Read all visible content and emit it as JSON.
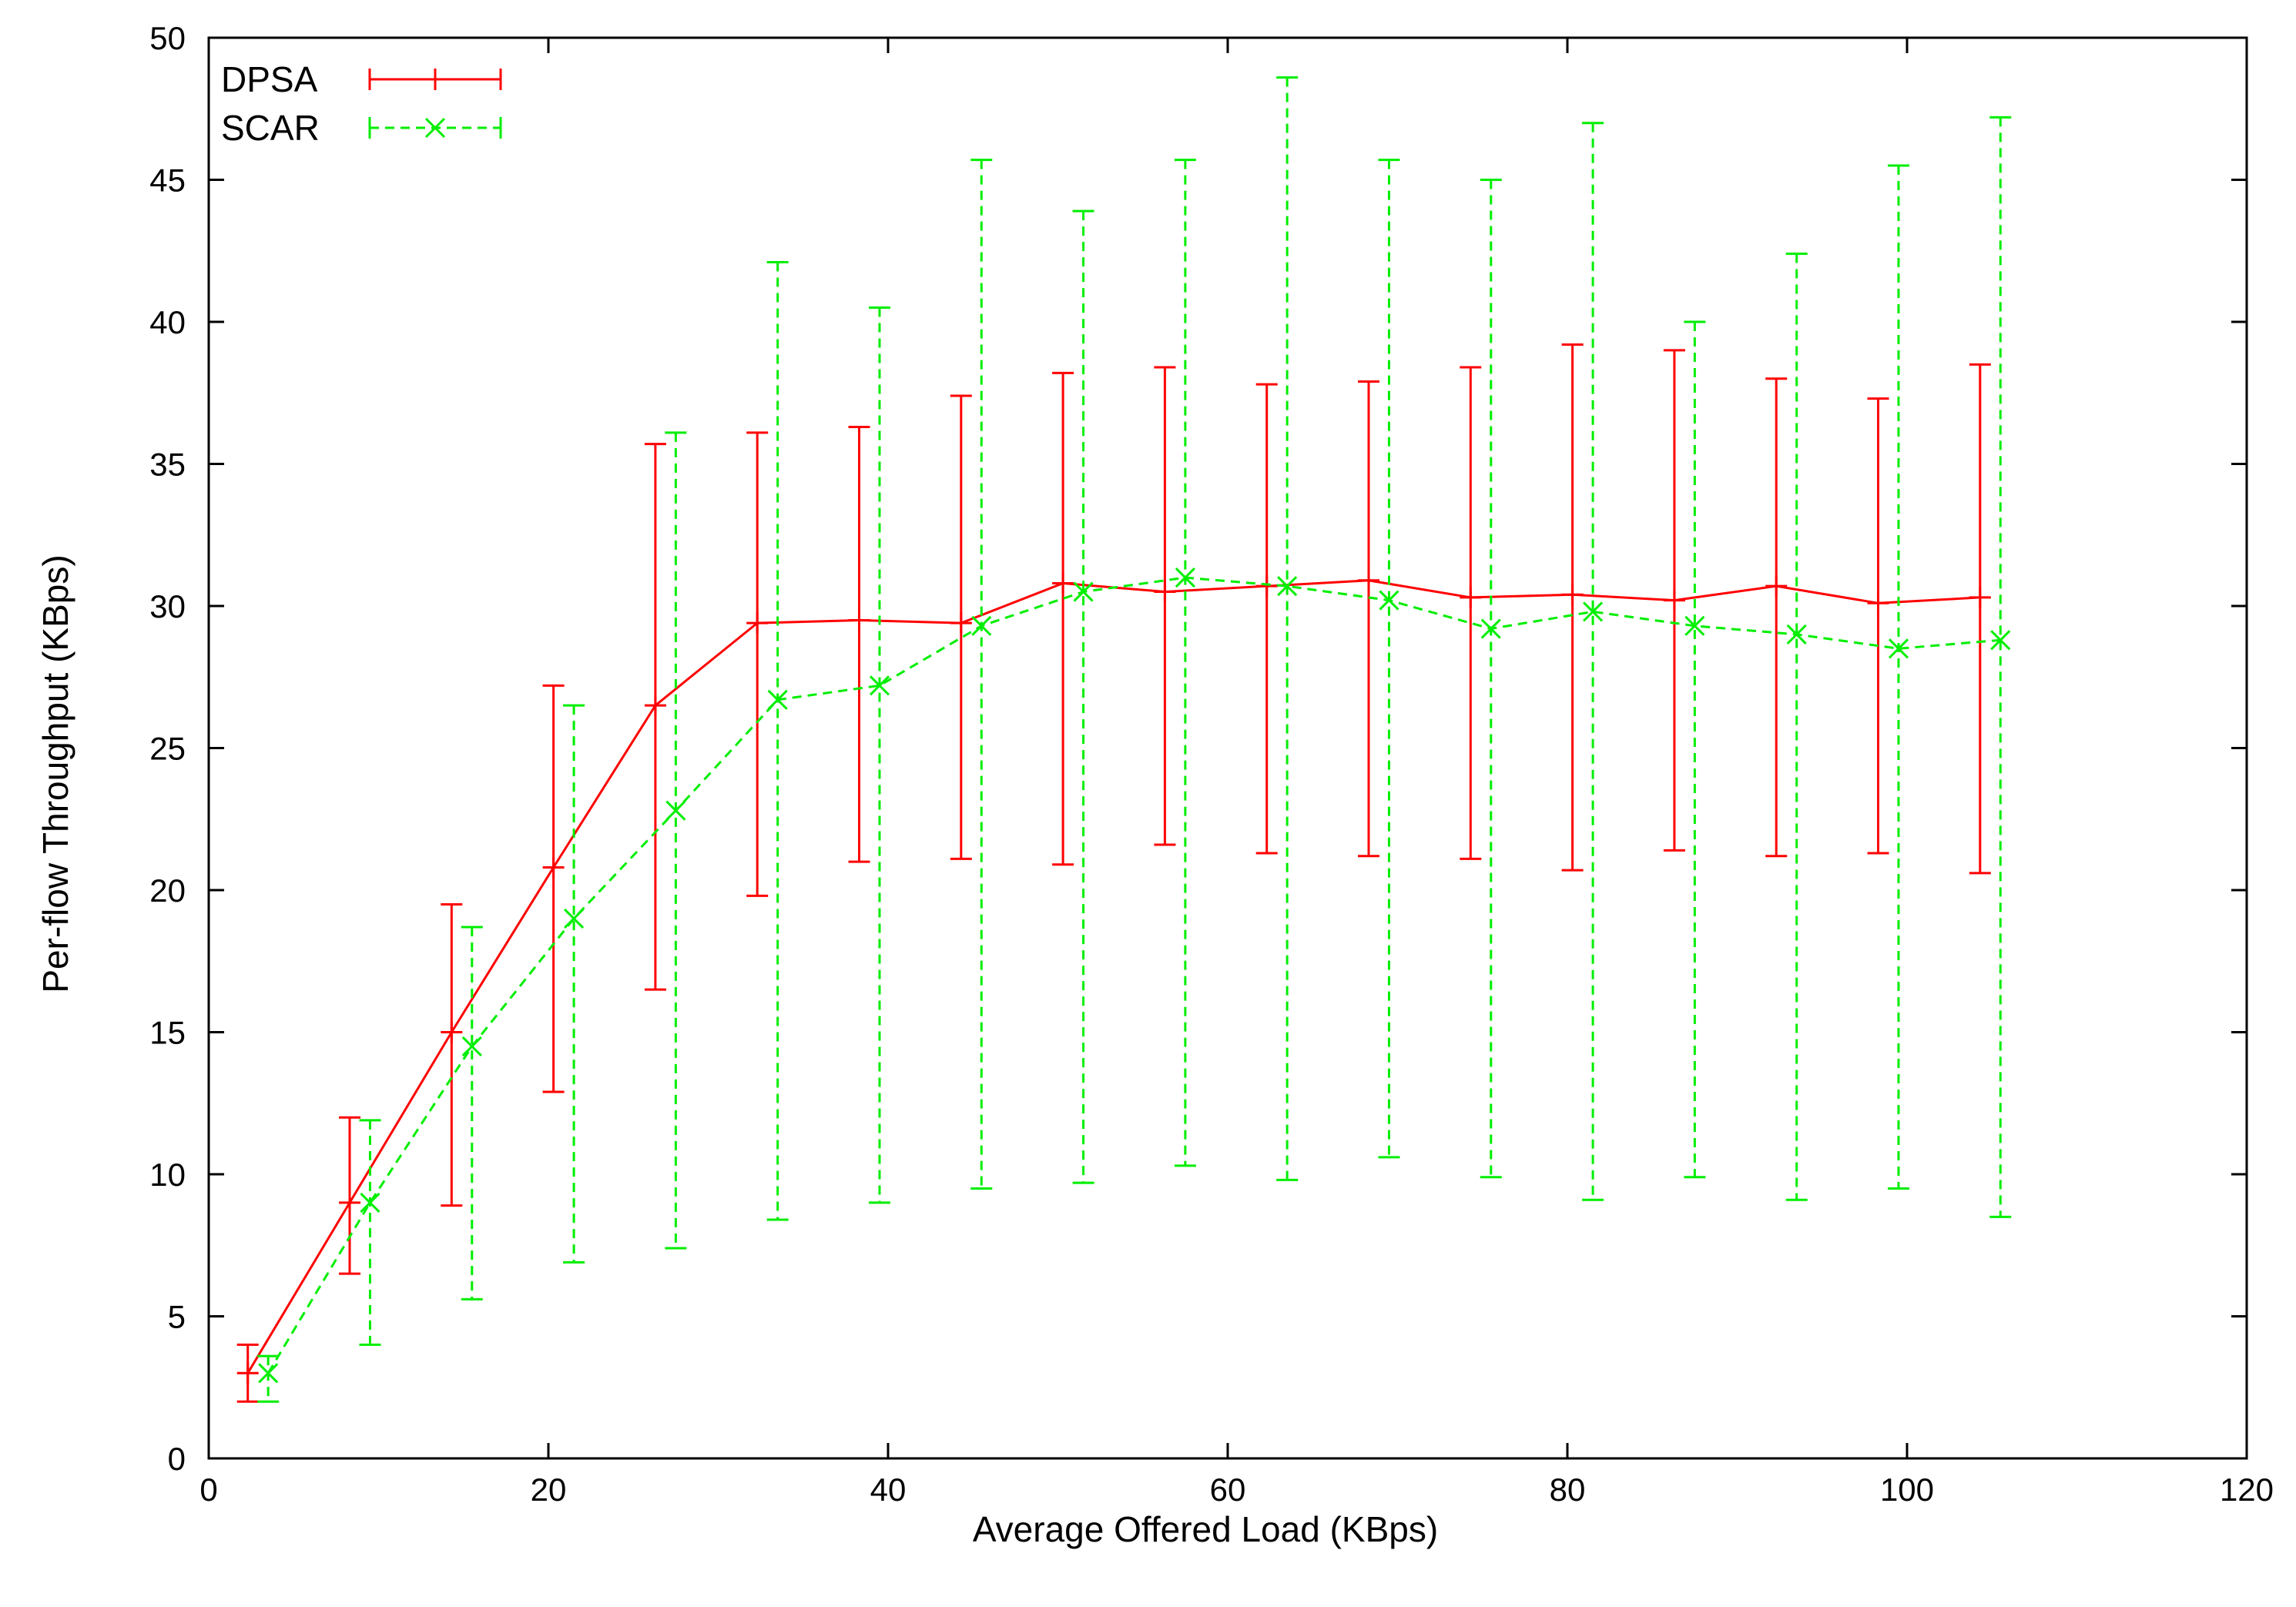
{
  "chart_data": {
    "type": "line",
    "xlabel": "Average Offered Load (KBps)",
    "ylabel": "Per-flow Throughput (KBps)",
    "xlim": [
      0,
      120
    ],
    "ylim": [
      0,
      50
    ],
    "xticks": [
      0,
      20,
      40,
      60,
      80,
      100,
      120
    ],
    "yticks": [
      0,
      5,
      10,
      15,
      20,
      25,
      30,
      35,
      40,
      45,
      50
    ],
    "grid": false,
    "legend_position": "top-left",
    "series": [
      {
        "name": "DPSA",
        "color": "#ff0000",
        "line_style": "solid",
        "marker": "plus",
        "points": [
          {
            "x": 2.3,
            "y": 3.0,
            "low": 2.0,
            "high": 4.0
          },
          {
            "x": 8.3,
            "y": 9.0,
            "low": 6.5,
            "high": 12.0
          },
          {
            "x": 14.3,
            "y": 15.0,
            "low": 8.9,
            "high": 19.5
          },
          {
            "x": 20.3,
            "y": 20.8,
            "low": 12.9,
            "high": 27.2
          },
          {
            "x": 26.3,
            "y": 26.5,
            "low": 16.5,
            "high": 35.7
          },
          {
            "x": 32.3,
            "y": 29.4,
            "low": 19.8,
            "high": 36.1
          },
          {
            "x": 38.3,
            "y": 29.5,
            "low": 21.0,
            "high": 36.3
          },
          {
            "x": 44.3,
            "y": 29.4,
            "low": 21.1,
            "high": 37.4
          },
          {
            "x": 50.3,
            "y": 30.8,
            "low": 20.9,
            "high": 38.2
          },
          {
            "x": 56.3,
            "y": 30.5,
            "low": 21.6,
            "high": 38.4
          },
          {
            "x": 62.3,
            "y": 30.7,
            "low": 21.3,
            "high": 37.8
          },
          {
            "x": 68.3,
            "y": 30.9,
            "low": 21.2,
            "high": 37.9
          },
          {
            "x": 74.3,
            "y": 30.3,
            "low": 21.1,
            "high": 38.4
          },
          {
            "x": 80.3,
            "y": 30.4,
            "low": 20.7,
            "high": 39.2
          },
          {
            "x": 86.3,
            "y": 30.2,
            "low": 21.4,
            "high": 39.0
          },
          {
            "x": 92.3,
            "y": 30.7,
            "low": 21.2,
            "high": 38.0
          },
          {
            "x": 98.3,
            "y": 30.1,
            "low": 21.3,
            "high": 37.3
          },
          {
            "x": 104.3,
            "y": 30.3,
            "low": 20.6,
            "high": 38.5
          }
        ]
      },
      {
        "name": "SCAR",
        "color": "#00ee00",
        "line_style": "dashed",
        "marker": "cross",
        "points": [
          {
            "x": 3.5,
            "y": 3.0,
            "low": 2.0,
            "high": 3.6
          },
          {
            "x": 9.5,
            "y": 9.0,
            "low": 4.0,
            "high": 11.9
          },
          {
            "x": 15.5,
            "y": 14.5,
            "low": 5.6,
            "high": 18.7
          },
          {
            "x": 21.5,
            "y": 19.0,
            "low": 6.9,
            "high": 26.5
          },
          {
            "x": 27.5,
            "y": 22.8,
            "low": 7.4,
            "high": 36.1
          },
          {
            "x": 33.5,
            "y": 26.7,
            "low": 8.4,
            "high": 42.1
          },
          {
            "x": 39.5,
            "y": 27.2,
            "low": 9.0,
            "high": 40.5
          },
          {
            "x": 45.5,
            "y": 29.3,
            "low": 9.5,
            "high": 45.7
          },
          {
            "x": 51.5,
            "y": 30.5,
            "low": 9.7,
            "high": 43.9
          },
          {
            "x": 57.5,
            "y": 31.0,
            "low": 10.3,
            "high": 45.7
          },
          {
            "x": 63.5,
            "y": 30.7,
            "low": 9.8,
            "high": 48.6
          },
          {
            "x": 69.5,
            "y": 30.2,
            "low": 10.6,
            "high": 45.7
          },
          {
            "x": 75.5,
            "y": 29.2,
            "low": 9.9,
            "high": 45.0
          },
          {
            "x": 81.5,
            "y": 29.8,
            "low": 9.1,
            "high": 47.0
          },
          {
            "x": 87.5,
            "y": 29.3,
            "low": 9.9,
            "high": 40.0
          },
          {
            "x": 93.5,
            "y": 29.0,
            "low": 9.1,
            "high": 42.4
          },
          {
            "x": 99.5,
            "y": 28.5,
            "low": 9.5,
            "high": 45.5
          },
          {
            "x": 105.5,
            "y": 28.8,
            "low": 8.5,
            "high": 47.2
          }
        ]
      }
    ]
  }
}
